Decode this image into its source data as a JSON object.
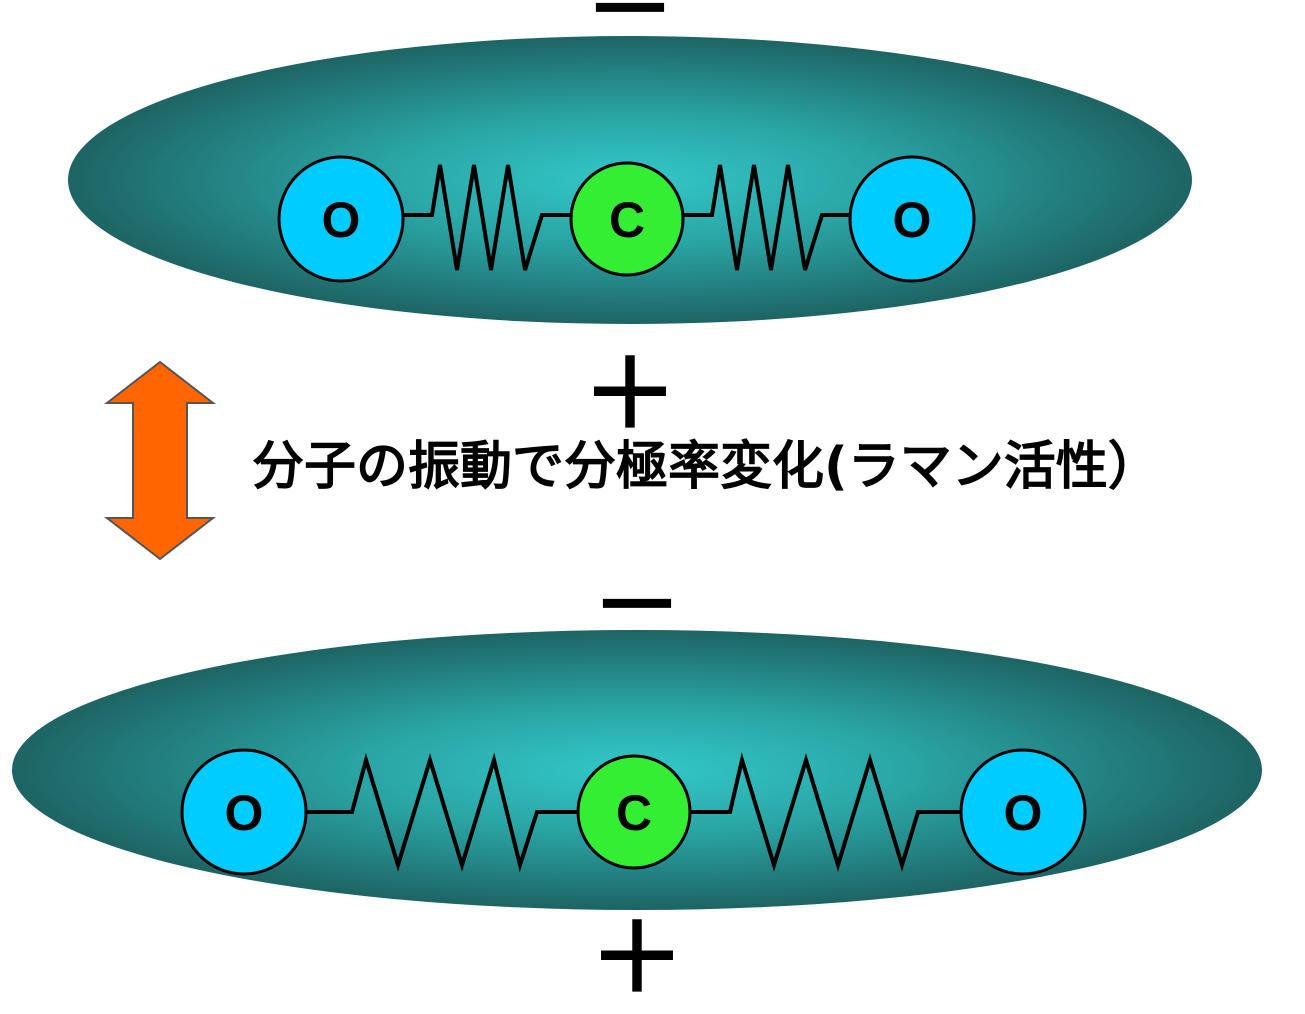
{
  "caption": "分子の振動で分極率変化(ラマン活性）",
  "top_panel": {
    "minus_sign": "－",
    "plus_sign": "＋",
    "atoms": [
      {
        "symbol": "O",
        "color": "#00ccff"
      },
      {
        "symbol": "C",
        "color": "#33ee33"
      },
      {
        "symbol": "O",
        "color": "#00ccff"
      }
    ]
  },
  "bottom_panel": {
    "minus_sign": "－",
    "plus_sign": "＋",
    "atoms": [
      {
        "symbol": "O",
        "color": "#00ccff"
      },
      {
        "symbol": "C",
        "color": "#33ee33"
      },
      {
        "symbol": "O",
        "color": "#00ccff"
      }
    ]
  },
  "colors": {
    "cloud_center": "#33c8c8",
    "cloud_edge": "#1e6464",
    "arrow_fill": "#ff6600"
  }
}
